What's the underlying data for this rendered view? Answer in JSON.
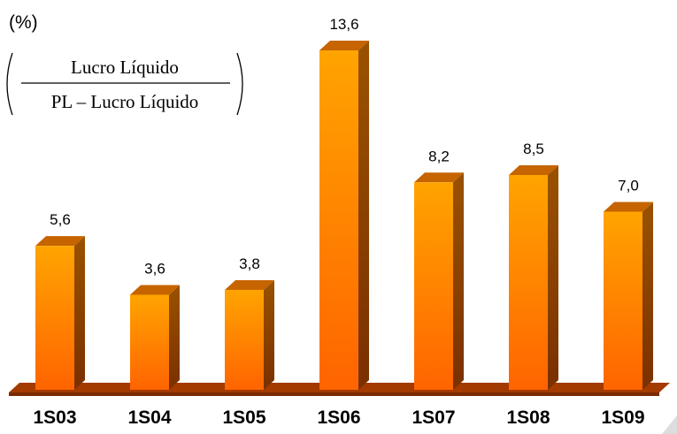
{
  "chart_data": {
    "type": "bar",
    "title": "(%)",
    "formula": {
      "numerator": "Lucro Líquido",
      "denominator": "PL – Lucro Líquido"
    },
    "categories": [
      "1S03",
      "1S04",
      "1S05",
      "1S06",
      "1S07",
      "1S08",
      "1S09"
    ],
    "values": [
      5.6,
      3.6,
      3.8,
      13.6,
      8.2,
      8.5,
      7.0
    ],
    "value_labels": [
      "5,6",
      "3,6",
      "3,8",
      "13,6",
      "8,2",
      "8,5",
      "7,0"
    ],
    "color": "#ff8c00"
  }
}
